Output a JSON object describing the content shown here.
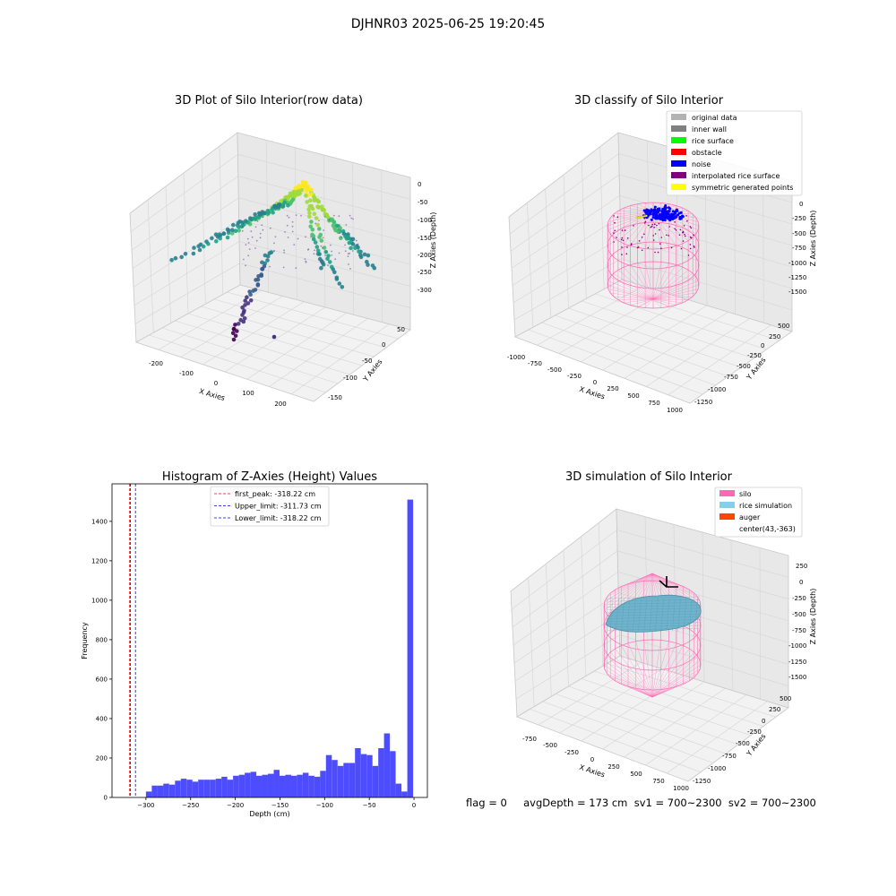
{
  "suptitle": "DJHNR03 2025-06-25 19:20:45",
  "status_line": "flag = 0     avgDepth = 173 cm  sv1 = 700~2300  sv2 = 700~2300",
  "chart_data": [
    {
      "type": "scatter",
      "title": "3D Plot of Silo Interior(row data)",
      "xlabel": "X Axies",
      "ylabel": "Y Axies",
      "zlabel": "Z Axies (Depth)",
      "x_ticks": [
        "-200",
        "-100",
        "0",
        "100",
        "200"
      ],
      "y_ticks": [
        "50",
        "0",
        "-50",
        "-100",
        "-150"
      ],
      "z_ticks": [
        "0",
        "-50",
        "-100",
        "-150",
        "-200",
        "-250",
        "-300"
      ],
      "colormap": "viridis"
    },
    {
      "type": "scatter",
      "title": "3D classify of Silo Interior",
      "xlabel": "X Axies",
      "ylabel": "Y Axies",
      "zlabel": "Z Axies (Depth)",
      "x_ticks": [
        "-1000",
        "-750",
        "-500",
        "-250",
        "0",
        "250",
        "500",
        "750",
        "1000"
      ],
      "y_ticks": [
        "500",
        "250",
        "0",
        "-250",
        "-500",
        "-750",
        "-1000",
        "-1250"
      ],
      "z_ticks": [
        "0",
        "-250",
        "-500",
        "-750",
        "-1000",
        "-1250",
        "-1500"
      ],
      "legend": [
        {
          "label": "original data",
          "color": "#b3b3b3"
        },
        {
          "label": "inner wall",
          "color": "#808080"
        },
        {
          "label": "rice surface",
          "color": "#00ff00"
        },
        {
          "label": "obstacle",
          "color": "#ff0000"
        },
        {
          "label": "noise",
          "color": "#0000ff"
        },
        {
          "label": "interpolated rice surface",
          "color": "#800080"
        },
        {
          "label": "symmetric generated points",
          "color": "#ffff00"
        }
      ]
    },
    {
      "type": "bar",
      "title": "Histogram of Z-Axies (Height) Values",
      "xlabel": "Depth (cm)",
      "ylabel": "Frequency",
      "xlim": [
        -338,
        15
      ],
      "ylim": [
        0,
        1590
      ],
      "x_ticks": [
        -300,
        -250,
        -200,
        -150,
        -100,
        -50,
        0
      ],
      "y_ticks": [
        0,
        200,
        400,
        600,
        800,
        1000,
        1200,
        1400
      ],
      "bar_color": "#4d4dff",
      "bin_start": -300,
      "bin_width": 6.5,
      "values": [
        30,
        60,
        60,
        70,
        65,
        85,
        95,
        90,
        80,
        90,
        90,
        90,
        95,
        105,
        90,
        110,
        115,
        125,
        130,
        110,
        115,
        120,
        140,
        110,
        115,
        110,
        115,
        125,
        110,
        105,
        135,
        215,
        190,
        160,
        175,
        175,
        250,
        220,
        215,
        160,
        250,
        325,
        235,
        70,
        30,
        1510
      ],
      "lines": [
        {
          "label": "first_peak: -318.22 cm",
          "x": -318.22,
          "color": "#ff0000"
        },
        {
          "label": "Upper_limit: -311.73 cm",
          "x": -311.73,
          "color": "#0000ff"
        },
        {
          "label": "Lower_limit: -318.22 cm",
          "x": -318.22,
          "color": "#0000ff"
        }
      ]
    },
    {
      "type": "scatter",
      "title": "3D simulation of Silo Interior",
      "xlabel": "X Axies",
      "ylabel": "Y Axies",
      "zlabel": "Z Axies (Depth)",
      "x_ticks": [
        "-750",
        "-500",
        "-250",
        "0",
        "250",
        "500",
        "750",
        "1000"
      ],
      "y_ticks": [
        "500",
        "250",
        "0",
        "-250",
        "-500",
        "-750",
        "-1000",
        "-1250"
      ],
      "z_ticks": [
        "250",
        "0",
        "-250",
        "-500",
        "-750",
        "-1000",
        "-1250",
        "-1500"
      ],
      "legend": [
        {
          "label": "silo",
          "color": "#ff69b4"
        },
        {
          "label": "rice simulation",
          "color": "#87ceeb"
        },
        {
          "label": "auger",
          "color": "#ff4500"
        },
        {
          "label": "center(43,-363)",
          "color": ""
        }
      ]
    }
  ]
}
